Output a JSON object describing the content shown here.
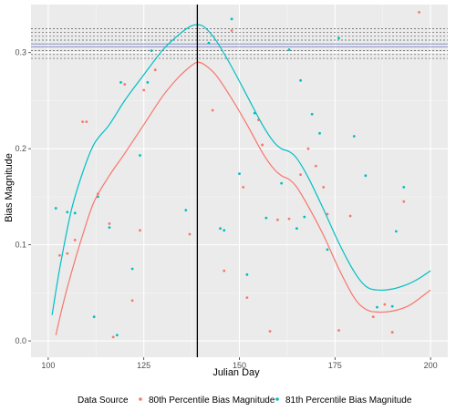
{
  "chart_data": {
    "type": "scatter",
    "xlabel": "Julian Day",
    "ylabel": "Bias Magnitude",
    "xlim": [
      95.5,
      204.5
    ],
    "ylim": [
      -0.017,
      0.35
    ],
    "x_ticks": [
      100,
      125,
      150,
      175,
      200
    ],
    "y_ticks": [
      0.0,
      0.1,
      0.2,
      0.3
    ],
    "y_tick_labels": [
      "0.0",
      "0.1",
      "0.2",
      "0.3"
    ],
    "x_tick_labels": [
      "100",
      "125",
      "150",
      "175",
      "200"
    ],
    "grid": true,
    "background": "#ebebeb",
    "vertical_line_x": 139,
    "horizontal_reference_lines": [
      0.294,
      0.298,
      0.302,
      0.306,
      0.309,
      0.313,
      0.317,
      0.321,
      0.325
    ],
    "horizontal_reference_solid": [
      0.306,
      0.309
    ],
    "legend": {
      "position": "bottom",
      "title": "Data Source",
      "entries": [
        "80th Percentile Bias Magnitude",
        "81th Percentile Bias Magnitude"
      ]
    },
    "series": [
      {
        "name": "80th Percentile Bias Magnitude",
        "color": "#F8766D",
        "points": [
          [
            103,
            0.089
          ],
          [
            105,
            0.091
          ],
          [
            107,
            0.105
          ],
          [
            109,
            0.228
          ],
          [
            110,
            0.228
          ],
          [
            113,
            0.153
          ],
          [
            116,
            0.122
          ],
          [
            117,
            0.004
          ],
          [
            120,
            0.267
          ],
          [
            122,
            0.042
          ],
          [
            124,
            0.115
          ],
          [
            125,
            0.261
          ],
          [
            128,
            0.282
          ],
          [
            137,
            0.111
          ],
          [
            143,
            0.24
          ],
          [
            146,
            0.073
          ],
          [
            148,
            0.323
          ],
          [
            151,
            0.16
          ],
          [
            152,
            0.045
          ],
          [
            155,
            0.23
          ],
          [
            156,
            0.204
          ],
          [
            158,
            0.01
          ],
          [
            160,
            0.126
          ],
          [
            163,
            0.127
          ],
          [
            166,
            0.173
          ],
          [
            168,
            0.2
          ],
          [
            170,
            0.182
          ],
          [
            172,
            0.16
          ],
          [
            173,
            0.132
          ],
          [
            176,
            0.011
          ],
          [
            179,
            0.13
          ],
          [
            185,
            0.025
          ],
          [
            188,
            0.038
          ],
          [
            190,
            0.009
          ],
          [
            193,
            0.145
          ],
          [
            197,
            0.342
          ]
        ],
        "smooth": [
          [
            102,
            0.006
          ],
          [
            104,
            0.04
          ],
          [
            106,
            0.07
          ],
          [
            109,
            0.11
          ],
          [
            112,
            0.145
          ],
          [
            116,
            0.172
          ],
          [
            120,
            0.195
          ],
          [
            125,
            0.225
          ],
          [
            130,
            0.255
          ],
          [
            134,
            0.274
          ],
          [
            137,
            0.285
          ],
          [
            139,
            0.29
          ],
          [
            141,
            0.287
          ],
          [
            144,
            0.276
          ],
          [
            148,
            0.252
          ],
          [
            152,
            0.225
          ],
          [
            156,
            0.196
          ],
          [
            159,
            0.179
          ],
          [
            161,
            0.172
          ],
          [
            163,
            0.168
          ],
          [
            165,
            0.16
          ],
          [
            168,
            0.14
          ],
          [
            172,
            0.11
          ],
          [
            176,
            0.075
          ],
          [
            180,
            0.045
          ],
          [
            183,
            0.033
          ],
          [
            186,
            0.03
          ],
          [
            190,
            0.031
          ],
          [
            194,
            0.036
          ],
          [
            197,
            0.044
          ],
          [
            200,
            0.053
          ]
        ]
      },
      {
        "name": "81th Percentile Bias Magnitude",
        "color": "#00BFC4",
        "points": [
          [
            102,
            0.138
          ],
          [
            105,
            0.134
          ],
          [
            107,
            0.133
          ],
          [
            112,
            0.025
          ],
          [
            113,
            0.15
          ],
          [
            116,
            0.118
          ],
          [
            118,
            0.006
          ],
          [
            119,
            0.269
          ],
          [
            122,
            0.075
          ],
          [
            124,
            0.193
          ],
          [
            126,
            0.269
          ],
          [
            127,
            0.302
          ],
          [
            136,
            0.136
          ],
          [
            142,
            0.31
          ],
          [
            145,
            0.117
          ],
          [
            146,
            0.115
          ],
          [
            148,
            0.335
          ],
          [
            150,
            0.174
          ],
          [
            152,
            0.069
          ],
          [
            154,
            0.237
          ],
          [
            157,
            0.128
          ],
          [
            161,
            0.164
          ],
          [
            163,
            0.303
          ],
          [
            165,
            0.117
          ],
          [
            166,
            0.271
          ],
          [
            167,
            0.129
          ],
          [
            169,
            0.236
          ],
          [
            171,
            0.216
          ],
          [
            173,
            0.095
          ],
          [
            176,
            0.315
          ],
          [
            180,
            0.213
          ],
          [
            183,
            0.172
          ],
          [
            186,
            0.035
          ],
          [
            190,
            0.036
          ],
          [
            191,
            0.114
          ],
          [
            193,
            0.16
          ]
        ],
        "smooth": [
          [
            101,
            0.027
          ],
          [
            103,
            0.075
          ],
          [
            106,
            0.135
          ],
          [
            109,
            0.175
          ],
          [
            112,
            0.205
          ],
          [
            116,
            0.225
          ],
          [
            120,
            0.25
          ],
          [
            125,
            0.277
          ],
          [
            130,
            0.303
          ],
          [
            134,
            0.318
          ],
          [
            137,
            0.327
          ],
          [
            139,
            0.329
          ],
          [
            141,
            0.326
          ],
          [
            144,
            0.312
          ],
          [
            148,
            0.285
          ],
          [
            152,
            0.255
          ],
          [
            156,
            0.225
          ],
          [
            159,
            0.207
          ],
          [
            161,
            0.2
          ],
          [
            163,
            0.197
          ],
          [
            165,
            0.19
          ],
          [
            168,
            0.17
          ],
          [
            172,
            0.137
          ],
          [
            176,
            0.102
          ],
          [
            180,
            0.072
          ],
          [
            183,
            0.057
          ],
          [
            186,
            0.053
          ],
          [
            190,
            0.054
          ],
          [
            194,
            0.059
          ],
          [
            197,
            0.065
          ],
          [
            200,
            0.073
          ]
        ]
      }
    ]
  }
}
